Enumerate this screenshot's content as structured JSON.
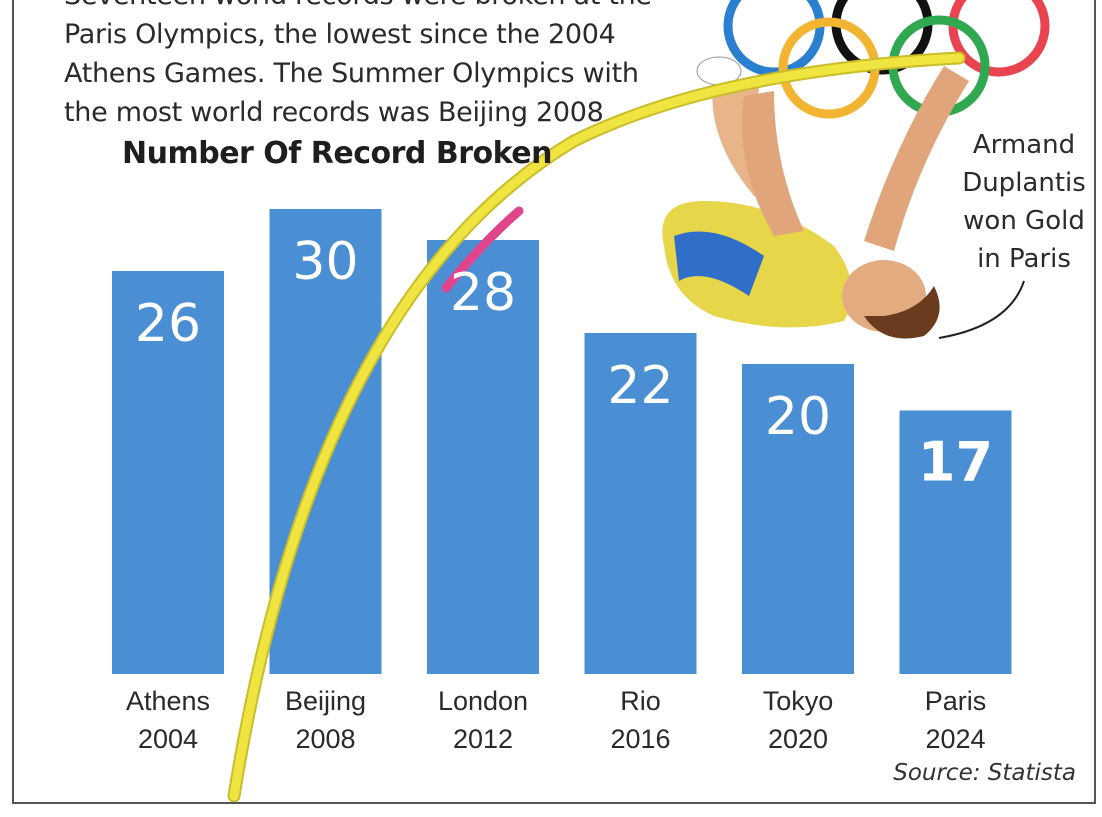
{
  "intro": {
    "lines": [
      "Seventeen world records were broken at the",
      "Paris Olympics, the lowest since the 2004",
      "Athens Games. The Summer Olympics with",
      "the most world records was Beijing 2008"
    ]
  },
  "annotation": {
    "lines": [
      "Armand",
      "Duplantis",
      "won Gold",
      "in Paris"
    ]
  },
  "source": "Source: Statista",
  "colors": {
    "bar": "#4a8fd4",
    "value_text": "#ffffff",
    "pole": "#f0e440",
    "ring_blue": "#2a7fd0",
    "ring_black": "#111111",
    "ring_red": "#e8434f",
    "ring_yellow": "#f3b432",
    "ring_green": "#2fa84f",
    "athlete_kit": "#e8d64a",
    "athlete_kit_blue": "#2f6fc9"
  },
  "chart_data": {
    "type": "bar",
    "title": "Number Of Record Broken",
    "categories": [
      [
        "Athens",
        "2004"
      ],
      [
        "Beijing",
        "2008"
      ],
      [
        "London",
        "2012"
      ],
      [
        "Rio",
        "2016"
      ],
      [
        "Tokyo",
        "2020"
      ],
      [
        "Paris",
        "2024"
      ]
    ],
    "values": [
      26,
      30,
      28,
      22,
      20,
      17
    ],
    "ylim": [
      0,
      30
    ],
    "grid": false,
    "legend": "none"
  }
}
